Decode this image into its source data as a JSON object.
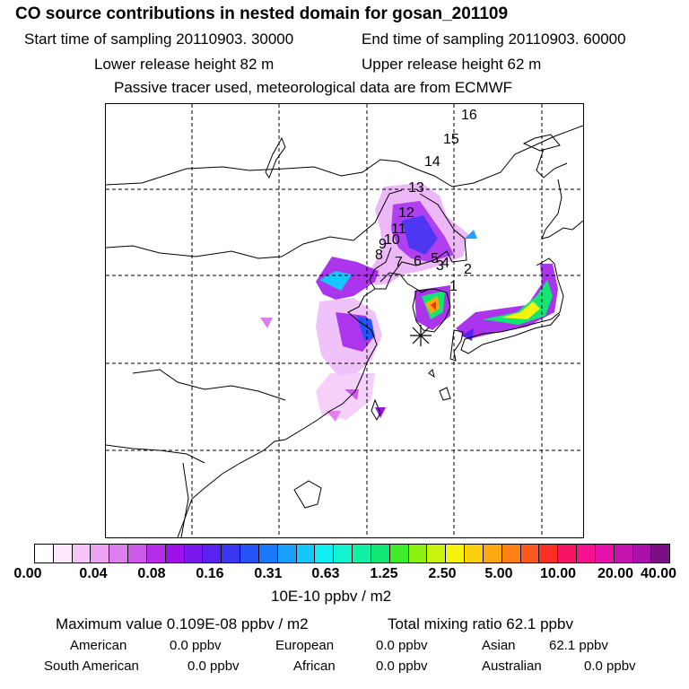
{
  "header": {
    "title": "CO  source contributions in nested domain for gosan_201109",
    "start_time": "Start time of sampling 20110903. 30000",
    "end_time": "End time of sampling 20110903. 60000",
    "lower_height": "Lower release height   82 m",
    "upper_height": "Upper release height   62 m",
    "note": "Passive tracer used, meteorological data are from ECMWF"
  },
  "map": {
    "trajectory_labels": [
      "16",
      "15",
      "14",
      "13",
      "12",
      "11",
      "10",
      "9",
      "8",
      "7",
      "6",
      "5",
      "4",
      "3",
      "2",
      "1"
    ],
    "receptor_marker": "receptor-star"
  },
  "colorbar": {
    "colors": [
      "#ffffff",
      "#fde8fd",
      "#f6c6f8",
      "#eea2f4",
      "#de7ef0",
      "#cc5ae8",
      "#b32ee6",
      "#9b12ea",
      "#7b18ee",
      "#5a22f0",
      "#3c36f2",
      "#2454f8",
      "#1a78fa",
      "#1aa0fc",
      "#14c8fc",
      "#12eef4",
      "#12f4d2",
      "#12f0a4",
      "#12e672",
      "#3eec2a",
      "#8cf014",
      "#c8f410",
      "#f6f40e",
      "#fcd00e",
      "#fca80e",
      "#fc8014",
      "#fc5a1c",
      "#f83024",
      "#f81464",
      "#f4128e",
      "#e612ac",
      "#c812b0",
      "#a812a8",
      "#7a1086"
    ],
    "tick_labels": [
      "0.00",
      "0.04",
      "0.08",
      "0.16",
      "0.31",
      "0.63",
      "1.25",
      "2.50",
      "5.00",
      "10.00",
      "20.00",
      "40.00"
    ],
    "unit": "10E-10 ppbv / m2"
  },
  "stats": {
    "max_value": "Maximum value  0.109E-08 ppbv / m2",
    "total": "Total mixing ratio       62.1 ppbv"
  },
  "regions": [
    {
      "name": "American",
      "value": "0.0 ppbv"
    },
    {
      "name": "European",
      "value": "0.0 ppbv"
    },
    {
      "name": "Asian",
      "value": "62.1 ppbv"
    },
    {
      "name": "South American",
      "value": "0.0 ppbv"
    },
    {
      "name": "African",
      "value": "0.0 ppbv"
    },
    {
      "name": "Australian",
      "value": "0.0 ppbv"
    }
  ]
}
